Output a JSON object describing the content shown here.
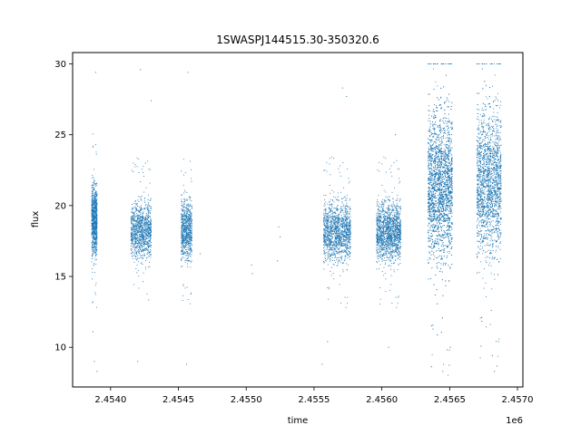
{
  "chart_data": {
    "type": "scatter",
    "title": "1SWASPJ144515.30-350320.6",
    "xlabel": "time",
    "ylabel": "flux",
    "x_offset_label": "1e6",
    "xlim": [
      2453720,
      2457040
    ],
    "ylim": [
      7.2,
      30.8
    ],
    "x_ticks": [
      2.454,
      2.4545,
      2.455,
      2.4555,
      2.456,
      2.4565,
      2.457
    ],
    "x_tick_labels": [
      "2.4540",
      "2.4545",
      "2.4550",
      "2.4555",
      "2.4560",
      "2.4565",
      "2.4570"
    ],
    "y_ticks": [
      10,
      15,
      20,
      25,
      30
    ],
    "y_tick_labels": [
      "10",
      "15",
      "20",
      "25",
      "30"
    ],
    "grid": false,
    "marker_color": "#1f77b4",
    "series": [
      {
        "segments": [
          {
            "x0": 2453860,
            "x1": 2453900,
            "ymin": 15.0,
            "ymax": 23.0,
            "n": 900
          },
          {
            "x0": 2454150,
            "x1": 2454300,
            "ymin": 15.0,
            "ymax": 21.5,
            "n": 1100
          },
          {
            "x0": 2454520,
            "x1": 2454600,
            "ymin": 15.0,
            "ymax": 21.5,
            "n": 800
          },
          {
            "x0": 2455570,
            "x1": 2455770,
            "ymin": 14.8,
            "ymax": 21.5,
            "n": 1400
          },
          {
            "x0": 2455960,
            "x1": 2456140,
            "ymin": 14.8,
            "ymax": 21.5,
            "n": 1500
          },
          {
            "x0": 2456340,
            "x1": 2456520,
            "ymin": 13.0,
            "ymax": 29.8,
            "n": 3200
          },
          {
            "x0": 2456700,
            "x1": 2456880,
            "ymin": 13.5,
            "ymax": 29.8,
            "n": 2200
          }
        ],
        "sparse_points": [
          {
            "x": 2453890,
            "y": 29.4
          },
          {
            "x": 2453900,
            "y": 8.3
          },
          {
            "x": 2453880,
            "y": 9.0
          },
          {
            "x": 2453870,
            "y": 11.1
          },
          {
            "x": 2454220,
            "y": 29.6
          },
          {
            "x": 2454200,
            "y": 9.0
          },
          {
            "x": 2454300,
            "y": 27.4
          },
          {
            "x": 2454570,
            "y": 29.4
          },
          {
            "x": 2454560,
            "y": 8.8
          },
          {
            "x": 2454660,
            "y": 16.6
          },
          {
            "x": 2455040,
            "y": 15.8
          },
          {
            "x": 2455045,
            "y": 15.2
          },
          {
            "x": 2455240,
            "y": 18.5
          },
          {
            "x": 2455250,
            "y": 17.8
          },
          {
            "x": 2455230,
            "y": 16.1
          },
          {
            "x": 2455710,
            "y": 28.3
          },
          {
            "x": 2455740,
            "y": 27.7
          },
          {
            "x": 2455560,
            "y": 8.8
          },
          {
            "x": 2455600,
            "y": 10.4
          },
          {
            "x": 2456100,
            "y": 25.0
          },
          {
            "x": 2456050,
            "y": 10.0
          },
          {
            "x": 2456830,
            "y": 8.3
          },
          {
            "x": 2456450,
            "y": 8.3
          }
        ]
      }
    ]
  }
}
